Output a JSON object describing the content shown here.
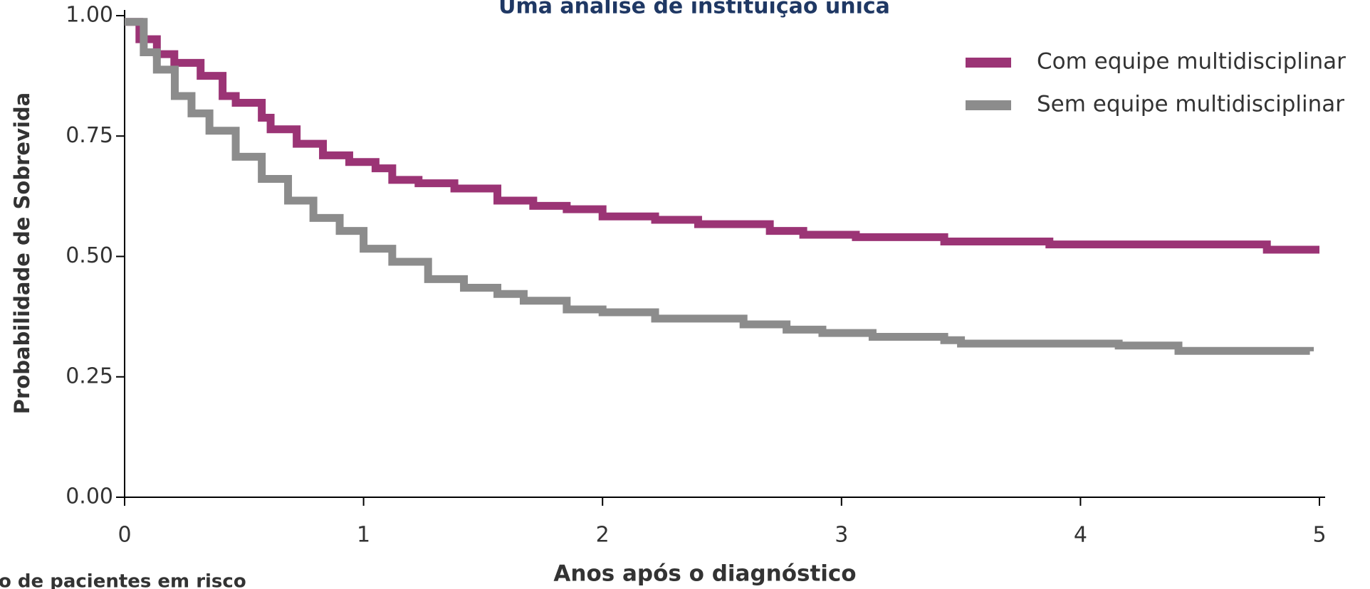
{
  "chart_data": {
    "type": "step",
    "title": "Uma análise de instituição única",
    "xlabel": "Anos após o diagnóstico",
    "ylabel": "Probabilidade de Sobrevida",
    "footnote": "o de pacientes em risco",
    "xlim": [
      0,
      5
    ],
    "ylim": [
      0,
      1
    ],
    "xticks": [
      0,
      1,
      2,
      3,
      4,
      5
    ],
    "yticks": [
      {
        "value": 0,
        "label": "0.00"
      },
      0.25,
      {
        "value": 0.5,
        "label": "0.50"
      },
      0.75,
      {
        "value": 1,
        "label": "1.00"
      }
    ],
    "legend": "top-right",
    "series": [
      {
        "name": "Com equipe multidisciplinar",
        "color": "#9b3475",
        "x": [
          0,
          0.062,
          0.135,
          0.208,
          0.318,
          0.41,
          0.465,
          0.574,
          0.611,
          0.72,
          0.83,
          0.94,
          1.05,
          1.12,
          1.23,
          1.38,
          1.56,
          1.71,
          1.85,
          2.0,
          2.22,
          2.4,
          2.7,
          2.84,
          3.06,
          3.43,
          3.87,
          4.78,
          5.0
        ],
        "values": [
          0.987,
          0.951,
          0.92,
          0.902,
          0.875,
          0.833,
          0.819,
          0.788,
          0.764,
          0.734,
          0.71,
          0.696,
          0.683,
          0.659,
          0.652,
          0.641,
          0.616,
          0.605,
          0.598,
          0.583,
          0.576,
          0.567,
          0.553,
          0.545,
          0.54,
          0.531,
          0.525,
          0.514,
          0.514
        ]
      },
      {
        "name": "Sem equipe multidisciplinar",
        "color": "#8c8c8c",
        "x": [
          0,
          0.08,
          0.135,
          0.21,
          0.28,
          0.355,
          0.465,
          0.574,
          0.684,
          0.79,
          0.9,
          1.0,
          1.12,
          1.27,
          1.42,
          1.56,
          1.67,
          1.85,
          2.0,
          2.22,
          2.59,
          2.77,
          2.92,
          3.13,
          3.43,
          3.5,
          4.16,
          4.41,
          4.96
        ],
        "values": [
          0.987,
          0.924,
          0.888,
          0.833,
          0.797,
          0.761,
          0.707,
          0.661,
          0.616,
          0.58,
          0.553,
          0.516,
          0.489,
          0.453,
          0.435,
          0.422,
          0.408,
          0.39,
          0.384,
          0.371,
          0.359,
          0.348,
          0.341,
          0.333,
          0.326,
          0.319,
          0.315,
          0.304,
          0.303
        ]
      }
    ]
  }
}
